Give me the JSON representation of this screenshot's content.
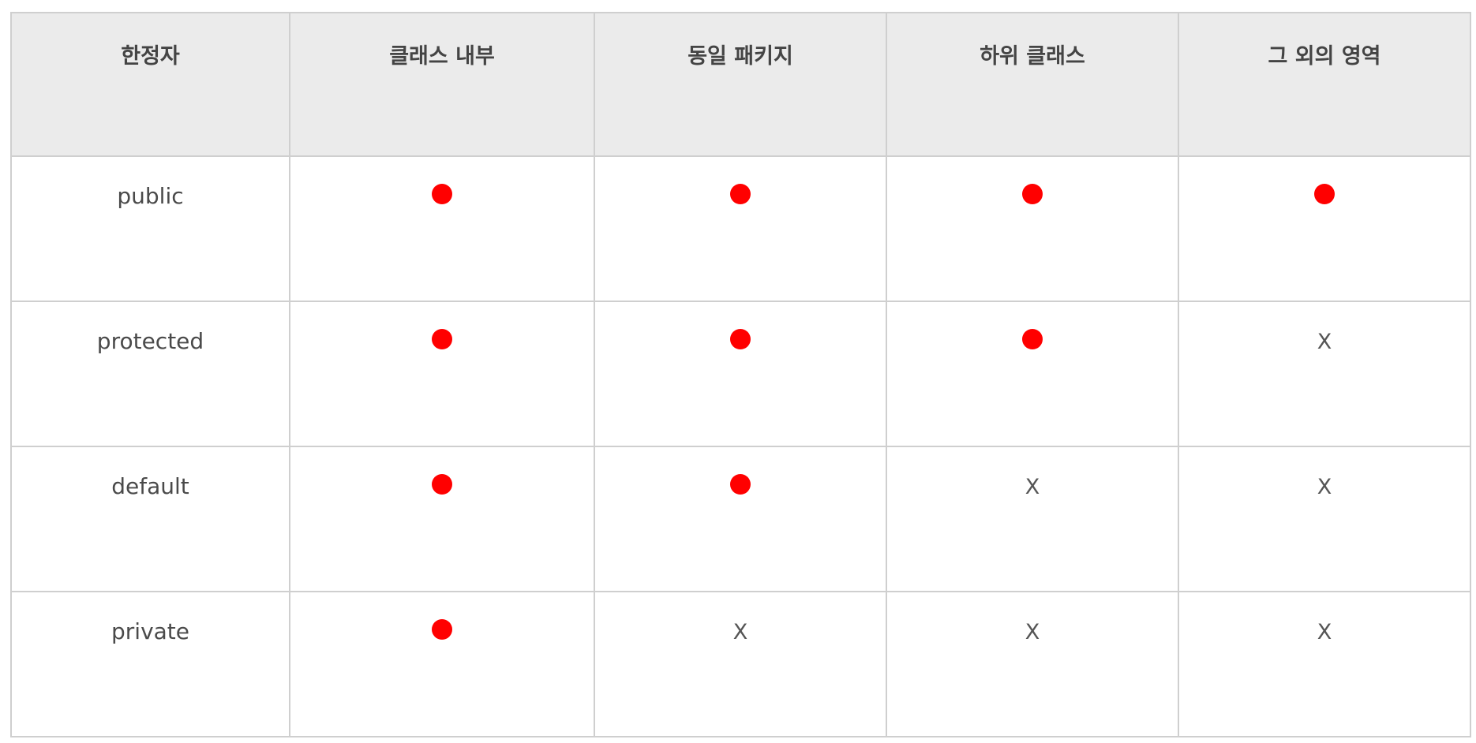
{
  "table": {
    "headers": [
      "한정자",
      "클래스 내부",
      "동일 패키지",
      "하위 클래스",
      "그 외의 영역"
    ],
    "rows": [
      {
        "modifier": "public",
        "cells": [
          "●",
          "●",
          "●",
          "●"
        ]
      },
      {
        "modifier": "protected",
        "cells": [
          "●",
          "●",
          "●",
          "X"
        ]
      },
      {
        "modifier": "default",
        "cells": [
          "●",
          "●",
          "X",
          "X"
        ]
      },
      {
        "modifier": "private",
        "cells": [
          "●",
          "X",
          "X",
          "X"
        ]
      }
    ]
  },
  "colors": {
    "header_bg": "#ebebeb",
    "border": "#cfcfcf",
    "dot": "#ff0000",
    "text": "#444444"
  }
}
